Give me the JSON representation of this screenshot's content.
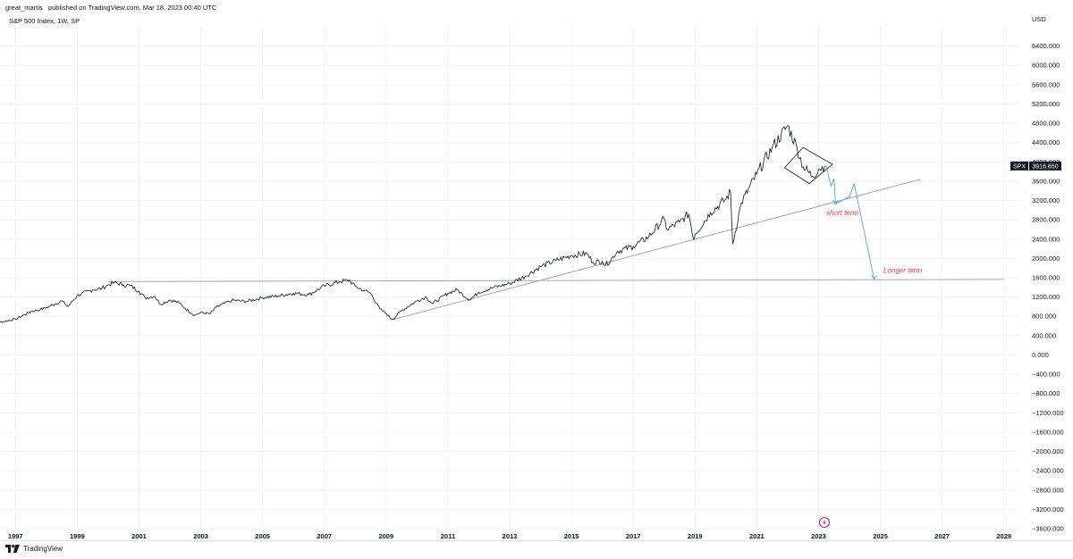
{
  "header": {
    "author": "great_martis",
    "published_text": "published on TradingView.com, Mar 18, 2023 00:40 UTC"
  },
  "footer": {
    "brand": "TradingView"
  },
  "chart_data": {
    "type": "line",
    "title": "S&P 500 Index, 1W, SP",
    "ylabel": "USD",
    "xlim": [
      1996.5,
      2029.5
    ],
    "ylim": [
      -3600,
      6800
    ],
    "x_ticks": [
      "1997",
      "1999",
      "2001",
      "2003",
      "2005",
      "2007",
      "2009",
      "2011",
      "2013",
      "2015",
      "2017",
      "2019",
      "2021",
      "2023",
      "2025",
      "2027",
      "2029"
    ],
    "y_ticks": [
      "6400.000",
      "6000.000",
      "5600.000",
      "5200.000",
      "4800.000",
      "4400.000",
      "4000.000",
      "3600.000",
      "3200.000",
      "2800.000",
      "2400.000",
      "2000.000",
      "1600.000",
      "1200.000",
      "800.000",
      "400.000",
      "0.000",
      "−400.000",
      "−800.000",
      "−1200.000",
      "−1600.000",
      "−2000.000",
      "−2400.000",
      "−2800.000",
      "−3200.000",
      "−3600.000"
    ],
    "series": [
      {
        "name": "SPX",
        "color": "#131722",
        "x": [
          1996.0,
          1996.5,
          1997.0,
          1997.5,
          1997.8,
          1998.0,
          1998.5,
          1998.7,
          1999.0,
          1999.5,
          1999.8,
          2000.0,
          2000.2,
          2000.5,
          2000.7,
          2001.0,
          2001.2,
          2001.5,
          2001.7,
          2002.0,
          2002.3,
          2002.5,
          2002.8,
          2003.0,
          2003.3,
          2003.5,
          2004.0,
          2004.5,
          2005.0,
          2005.5,
          2006.0,
          2006.5,
          2007.0,
          2007.5,
          2007.8,
          2008.0,
          2008.3,
          2008.5,
          2008.8,
          2009.0,
          2009.2,
          2009.5,
          2010.0,
          2010.3,
          2010.5,
          2011.0,
          2011.3,
          2011.7,
          2012.0,
          2012.5,
          2013.0,
          2013.5,
          2014.0,
          2014.5,
          2015.0,
          2015.5,
          2015.7,
          2016.0,
          2016.1,
          2016.5,
          2017.0,
          2017.5,
          2018.0,
          2018.1,
          2018.5,
          2018.8,
          2018.95,
          2019.0,
          2019.5,
          2020.0,
          2020.15,
          2020.22,
          2020.5,
          2021.0,
          2021.5,
          2022.0,
          2022.3,
          2022.5,
          2022.8,
          2023.0,
          2023.2
        ],
        "y": [
          620,
          680,
          740,
          900,
          940,
          980,
          1120,
          1000,
          1230,
          1350,
          1380,
          1450,
          1500,
          1450,
          1440,
          1320,
          1180,
          1220,
          1050,
          1140,
          1080,
          960,
          820,
          880,
          850,
          990,
          1130,
          1110,
          1190,
          1220,
          1280,
          1250,
          1430,
          1520,
          1550,
          1420,
          1330,
          1280,
          950,
          860,
          730,
          920,
          1120,
          1200,
          1060,
          1280,
          1350,
          1140,
          1300,
          1400,
          1480,
          1630,
          1830,
          1960,
          2060,
          2100,
          1920,
          1940,
          1850,
          2150,
          2250,
          2450,
          2820,
          2600,
          2750,
          2920,
          2400,
          2500,
          2950,
          3230,
          3380,
          2300,
          3150,
          3750,
          4300,
          4750,
          4300,
          3900,
          3700,
          3850,
          3916.65
        ]
      }
    ],
    "last_value": {
      "label": "SPX",
      "value": "3916.650"
    },
    "annotations": [
      {
        "text": "short term",
        "x": 2023.25,
        "y": 2900,
        "color": "#f23645"
      },
      {
        "text": "Longer term",
        "x": 2025.1,
        "y": 1700,
        "color": "#f23645"
      }
    ]
  }
}
